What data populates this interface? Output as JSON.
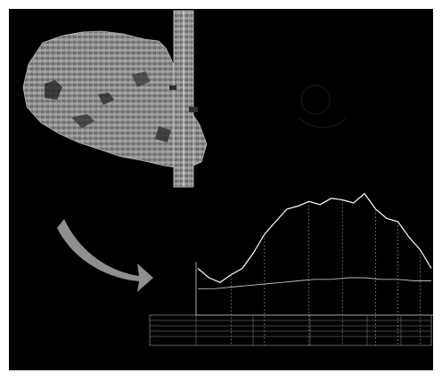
{
  "figure": {
    "background": "#000000",
    "frame_color": "#ffffff",
    "arrow_color": "#8f8f8f",
    "map_colors": [
      "#5a5a5a",
      "#7a7a7a",
      "#9b9b9b",
      "#bdbdbd"
    ],
    "profile_color": "#ffffff",
    "secondary_line_color": "#bdbdbd",
    "dashed_line_color": "#a0a0a0"
  },
  "elements": {
    "satellite_map": "aerial-map-image",
    "transect_strip": "vertical-transect-strip",
    "arrow": "curved-arrow-icon",
    "profile_chart": "elevation-profile",
    "profile_table": "profile-data-table"
  },
  "profile": {
    "top_line": [
      30,
      24,
      21,
      26,
      30,
      40,
      52,
      60,
      68,
      70,
      73,
      71,
      75,
      74,
      72,
      78,
      68,
      62,
      60,
      50,
      42,
      30
    ],
    "secondary_line": [
      17,
      17,
      18,
      19,
      20,
      21,
      22,
      23,
      23,
      24,
      24,
      23,
      23,
      22,
      22
    ],
    "dashed_markers": [
      3,
      6,
      10,
      13,
      16,
      18,
      20
    ]
  }
}
